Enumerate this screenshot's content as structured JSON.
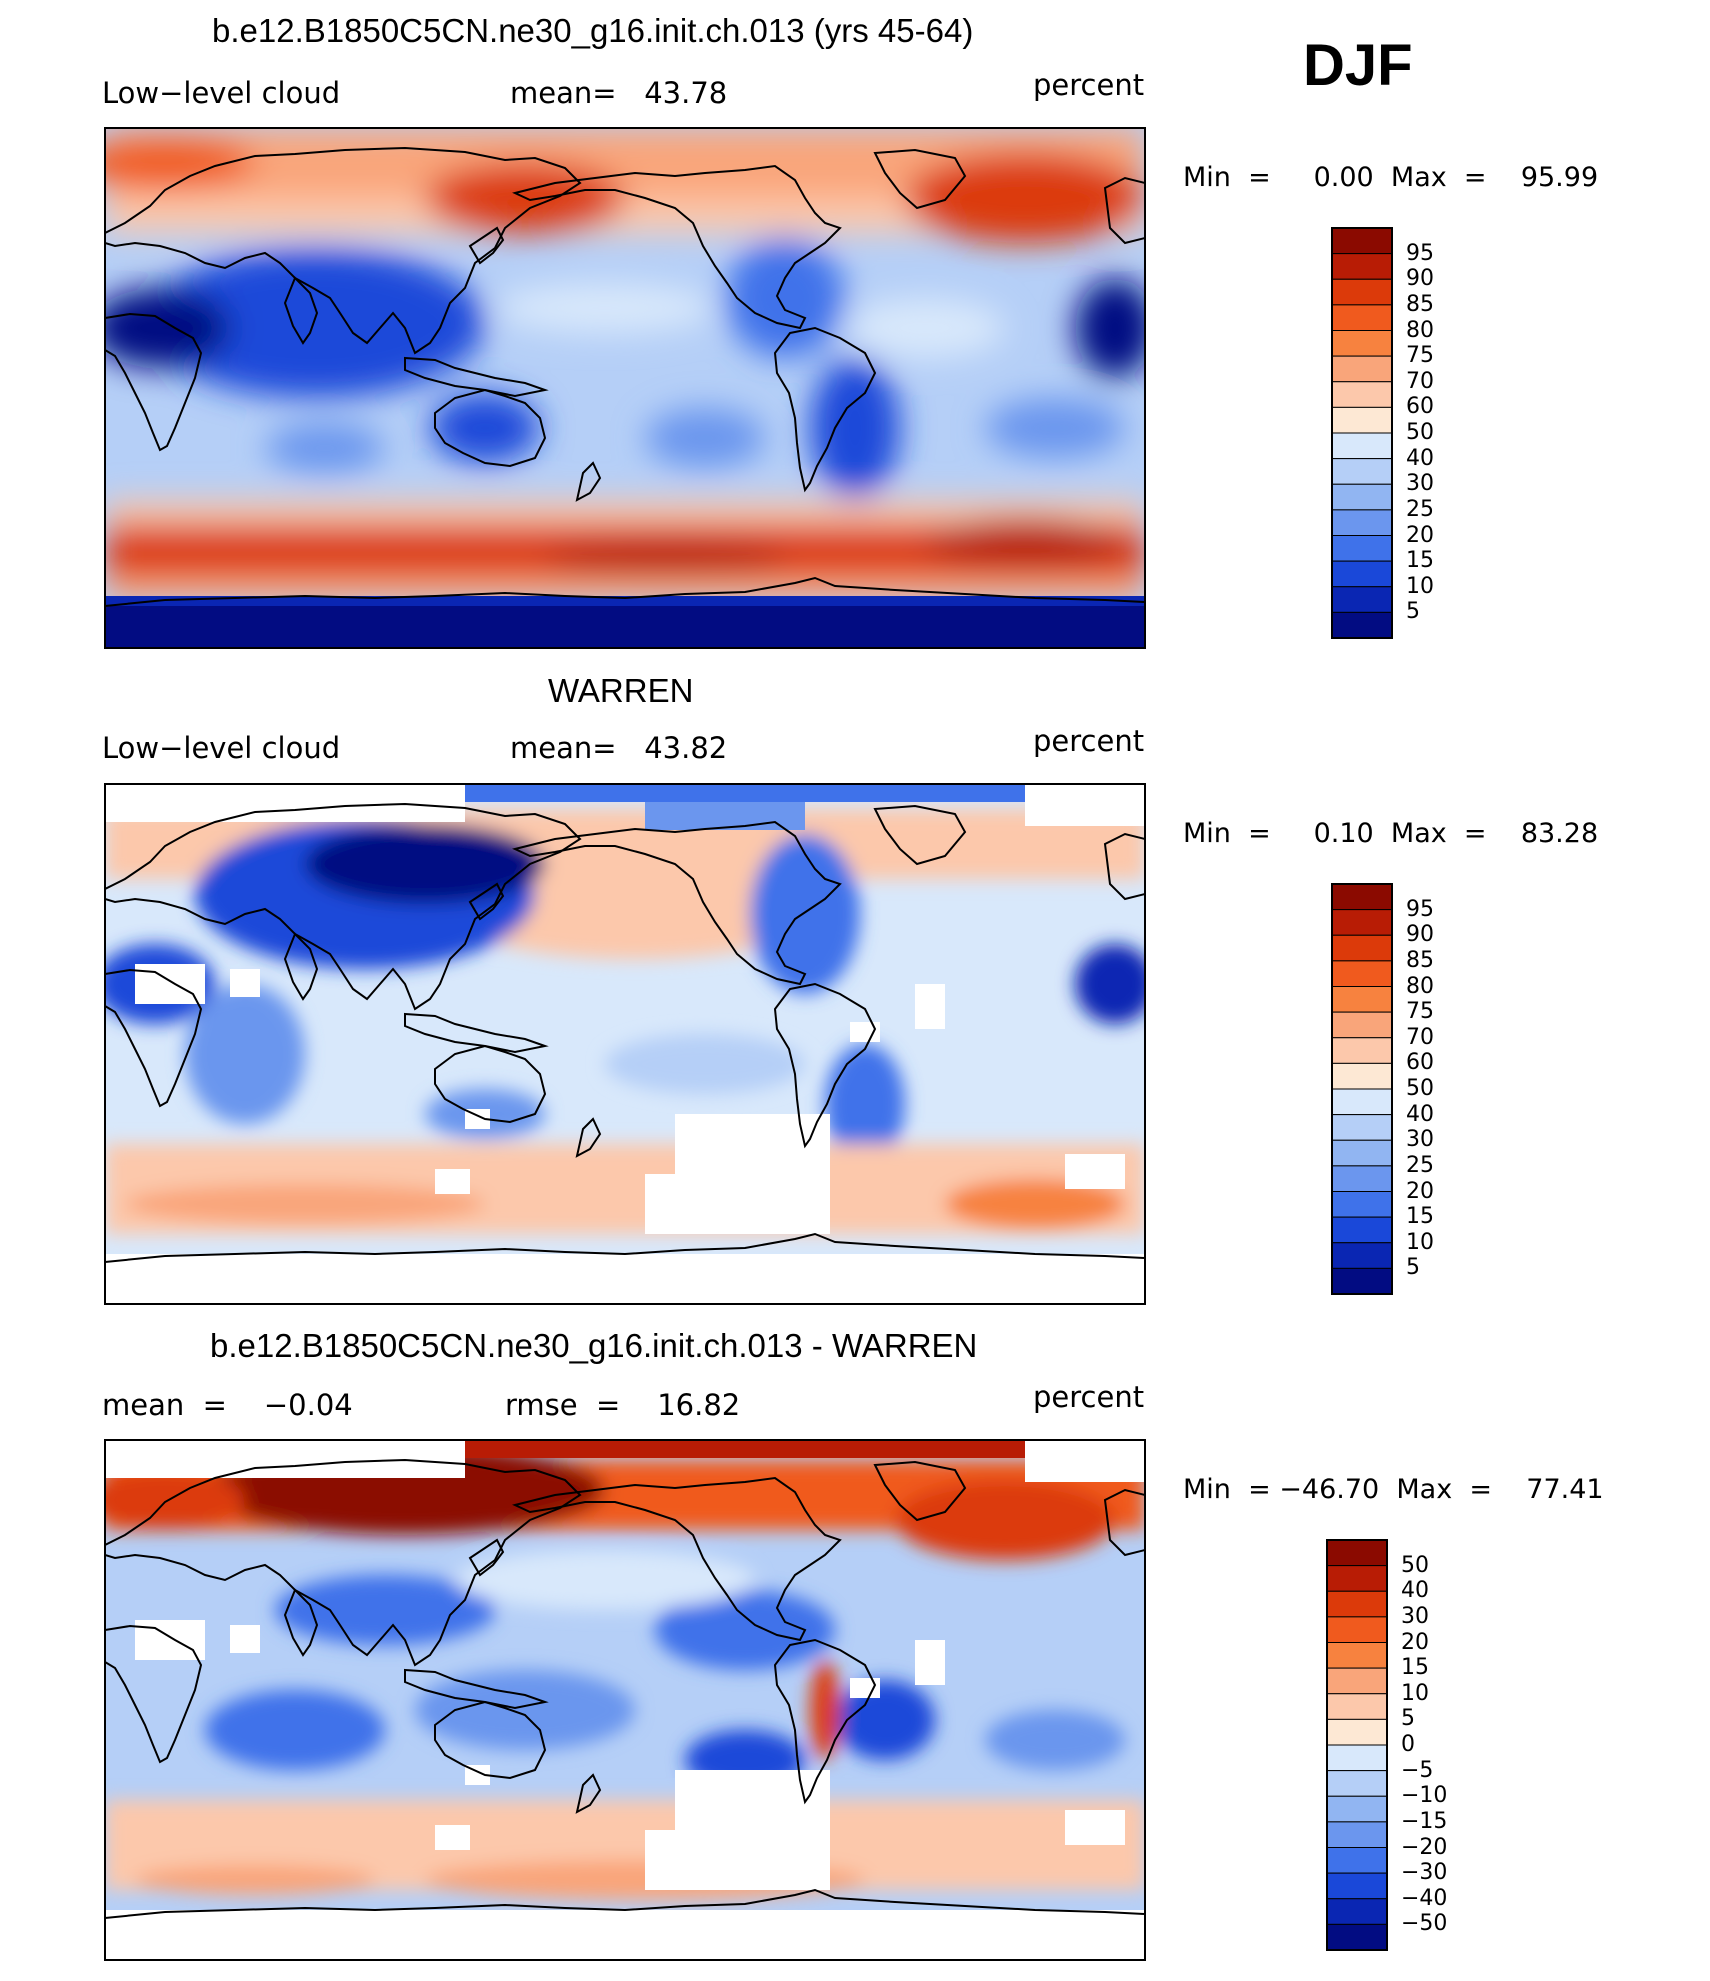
{
  "season": "DJF",
  "panels": [
    {
      "title": "b.e12.B1850C5CN.ne30_g16.init.ch.013 (yrs 45-64)",
      "left_label": "Low−level  cloud",
      "center_label": "mean=   43.78",
      "units": "percent",
      "minmax": "Min  =     0.00  Max  =    95.99",
      "variant": "model"
    },
    {
      "title": "WARREN",
      "left_label": "Low−level  cloud",
      "center_label": "mean=   43.82",
      "units": "percent",
      "minmax": "Min  =     0.10  Max  =    83.28",
      "variant": "obs"
    },
    {
      "title": "b.e12.B1850C5CN.ne30_g16.init.ch.013 - WARREN",
      "left_label": "mean  =    −0.04",
      "center_label": "rmse  =    16.82",
      "units": "percent",
      "minmax": "Min  = −46.70  Max  =    77.41",
      "variant": "diff"
    }
  ],
  "colorbars": [
    {
      "labels": [
        "95",
        "90",
        "85",
        "80",
        "75",
        "70",
        "60",
        "50",
        "40",
        "30",
        "25",
        "20",
        "15",
        "10",
        "5"
      ],
      "colors": [
        "#8b0a00",
        "#b81c05",
        "#dc3a0a",
        "#f05a1e",
        "#f7823f",
        "#f9a57a",
        "#fcc8ab",
        "#fde8d4",
        "#d8e8fb",
        "#b5cff7",
        "#91b5f2",
        "#6b96ee",
        "#3f72ea",
        "#1a48d9",
        "#0a26b3",
        "#020c82"
      ]
    },
    {
      "labels": [
        "95",
        "90",
        "85",
        "80",
        "75",
        "70",
        "60",
        "50",
        "40",
        "30",
        "25",
        "20",
        "15",
        "10",
        "5"
      ],
      "colors": [
        "#8b0a00",
        "#b81c05",
        "#dc3a0a",
        "#f05a1e",
        "#f7823f",
        "#f9a57a",
        "#fcc8ab",
        "#fde8d4",
        "#d8e8fb",
        "#b5cff7",
        "#91b5f2",
        "#6b96ee",
        "#3f72ea",
        "#1a48d9",
        "#0a26b3",
        "#020c82"
      ]
    },
    {
      "labels": [
        "50",
        "40",
        "30",
        "20",
        "15",
        "10",
        "5",
        "0",
        "−5",
        "−10",
        "−15",
        "−20",
        "−30",
        "−40",
        "−50"
      ],
      "colors": [
        "#8b0a00",
        "#b81c05",
        "#dc3a0a",
        "#f05a1e",
        "#f7823f",
        "#f9a57a",
        "#fcc8ab",
        "#fde8d4",
        "#d8e8fb",
        "#b5cff7",
        "#91b5f2",
        "#6b96ee",
        "#3f72ea",
        "#1a48d9",
        "#0a26b3",
        "#020c82"
      ]
    }
  ]
}
